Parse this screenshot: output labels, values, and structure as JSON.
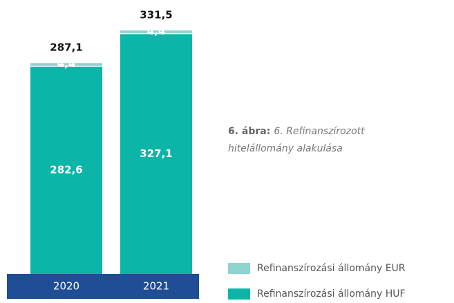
{
  "chart_data": {
    "type": "stacked_bar",
    "categories": [
      "2020",
      "2021"
    ],
    "series": [
      {
        "name": "Refinanszírozási állomány HUF",
        "color": "#0bb5a8",
        "values": [
          282.6,
          327.1
        ],
        "value_labels": [
          "282,6",
          "327,1"
        ]
      },
      {
        "name": "Refinanszírozási állomány EUR",
        "color": "#8fd3d0",
        "values": [
          4.4,
          4.4
        ],
        "value_labels": [
          "4,4",
          "4,4"
        ]
      }
    ],
    "totals": [
      287.1,
      331.5
    ],
    "total_labels": [
      "287,1",
      "331,5"
    ],
    "ylim": [
      0,
      331.5
    ],
    "caption": {
      "label": "6. ábra:",
      "text": "6. Refinanszírozott hitelállomány alakulása"
    },
    "axis_color": "#1f4e96"
  }
}
